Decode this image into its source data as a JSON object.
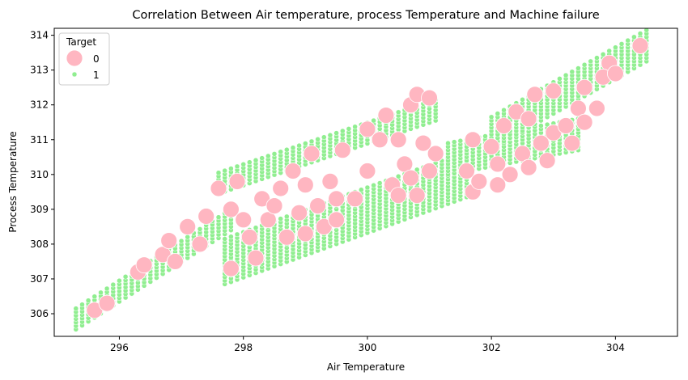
{
  "chart_data": {
    "type": "scatter",
    "title": "Correlation Between Air temperature, process Temperature and Machine failure",
    "xlabel": "Air Temperature",
    "ylabel": "Process Temperature",
    "xlim": [
      294.95,
      305.0
    ],
    "ylim": [
      305.35,
      314.2
    ],
    "xticks": [
      296,
      298,
      300,
      302,
      304
    ],
    "yticks": [
      306,
      307,
      308,
      309,
      310,
      311,
      312,
      313,
      314
    ],
    "grid": false,
    "legend": {
      "title": "Target",
      "placement": "upper-left",
      "entries": [
        {
          "label": "0",
          "color": "#ffb6c1"
        },
        {
          "label": "1",
          "color": "#90ee90"
        }
      ]
    },
    "series": [
      {
        "name": "0",
        "color": "#ffb6c1",
        "marker": "large-circle",
        "points": [
          [
            295.6,
            306.1
          ],
          [
            295.8,
            306.3
          ],
          [
            296.3,
            307.2
          ],
          [
            296.4,
            307.4
          ],
          [
            296.7,
            307.7
          ],
          [
            296.8,
            308.1
          ],
          [
            296.9,
            307.5
          ],
          [
            297.1,
            308.5
          ],
          [
            297.3,
            308.0
          ],
          [
            297.4,
            308.8
          ],
          [
            297.6,
            309.6
          ],
          [
            297.8,
            309.0
          ],
          [
            297.8,
            307.3
          ],
          [
            297.9,
            309.8
          ],
          [
            298.0,
            308.7
          ],
          [
            298.1,
            308.2
          ],
          [
            298.2,
            307.6
          ],
          [
            298.3,
            309.3
          ],
          [
            298.4,
            308.7
          ],
          [
            298.5,
            309.1
          ],
          [
            298.6,
            309.6
          ],
          [
            298.7,
            308.2
          ],
          [
            298.8,
            310.1
          ],
          [
            298.9,
            308.9
          ],
          [
            299.0,
            309.7
          ],
          [
            299.0,
            308.3
          ],
          [
            299.1,
            310.6
          ],
          [
            299.2,
            309.1
          ],
          [
            299.3,
            308.5
          ],
          [
            299.4,
            309.8
          ],
          [
            299.5,
            309.3
          ],
          [
            299.5,
            308.7
          ],
          [
            299.6,
            310.7
          ],
          [
            299.8,
            309.3
          ],
          [
            300.0,
            311.3
          ],
          [
            300.0,
            310.1
          ],
          [
            300.2,
            311.0
          ],
          [
            300.3,
            311.7
          ],
          [
            300.4,
            309.7
          ],
          [
            300.5,
            309.4
          ],
          [
            300.5,
            311.0
          ],
          [
            300.6,
            310.3
          ],
          [
            300.7,
            312.0
          ],
          [
            300.7,
            309.9
          ],
          [
            300.8,
            312.3
          ],
          [
            300.8,
            309.4
          ],
          [
            300.9,
            310.9
          ],
          [
            301.0,
            312.2
          ],
          [
            301.0,
            310.1
          ],
          [
            301.1,
            310.6
          ],
          [
            301.6,
            310.1
          ],
          [
            301.7,
            309.5
          ],
          [
            301.7,
            311.0
          ],
          [
            301.8,
            309.8
          ],
          [
            302.0,
            310.8
          ],
          [
            302.1,
            309.7
          ],
          [
            302.1,
            310.3
          ],
          [
            302.2,
            311.4
          ],
          [
            302.3,
            310.0
          ],
          [
            302.4,
            311.8
          ],
          [
            302.5,
            310.6
          ],
          [
            302.6,
            310.2
          ],
          [
            302.6,
            311.6
          ],
          [
            302.7,
            312.3
          ],
          [
            302.8,
            310.9
          ],
          [
            302.9,
            310.4
          ],
          [
            303.0,
            311.2
          ],
          [
            303.0,
            312.4
          ],
          [
            303.2,
            311.4
          ],
          [
            303.3,
            310.9
          ],
          [
            303.4,
            311.9
          ],
          [
            303.5,
            311.5
          ],
          [
            303.5,
            312.5
          ],
          [
            303.7,
            311.9
          ],
          [
            303.9,
            313.2
          ],
          [
            303.8,
            312.8
          ],
          [
            304.0,
            312.9
          ],
          [
            304.4,
            313.7
          ]
        ]
      },
      {
        "name": "1",
        "color": "#90ee90",
        "marker": "small-circle",
        "bands": [
          {
            "x": [
              295.3,
              297.8
            ],
            "center": [
              305.85,
              308.7
            ],
            "halfwidth": 0.3
          },
          {
            "x": [
              297.6,
              301.1
            ],
            "center": [
              309.75,
              311.85
            ],
            "halfwidth": 0.3
          },
          {
            "x": [
              297.7,
              301.6
            ],
            "center": [
              307.5,
              310.0
            ],
            "halfwidth": 0.65
          },
          {
            "x": [
              301.3,
              303.4
            ],
            "center": [
              310.45,
              311.15
            ],
            "halfwidth": 0.45
          },
          {
            "x": [
              302.0,
              304.5
            ],
            "center": [
              311.2,
              313.7
            ],
            "halfwidth": 0.45
          }
        ]
      }
    ]
  }
}
